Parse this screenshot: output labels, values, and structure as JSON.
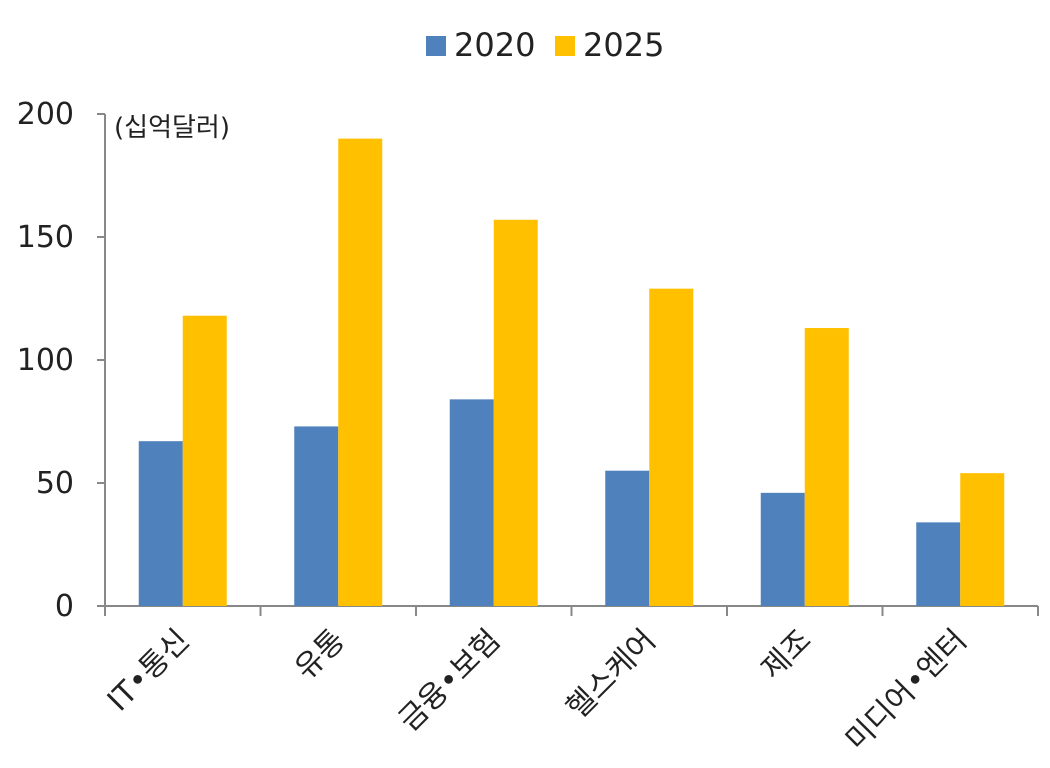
{
  "chart_data": {
    "type": "bar",
    "title": "",
    "unit_label": "(십억달러)",
    "categories": [
      "IT•통신",
      "유통",
      "금융•보험",
      "헬스케어",
      "제조",
      "미디어•엔터"
    ],
    "series": [
      {
        "name": "2020",
        "color": "#4f81bd",
        "values": [
          67,
          73,
          84,
          55,
          46,
          34
        ]
      },
      {
        "name": "2025",
        "color": "#ffc000",
        "values": [
          118,
          190,
          157,
          129,
          113,
          54
        ]
      }
    ],
    "ylim": [
      0,
      200
    ],
    "yticks": [
      0,
      50,
      100,
      150,
      200
    ],
    "grid": false,
    "legend_position": "top-center"
  }
}
